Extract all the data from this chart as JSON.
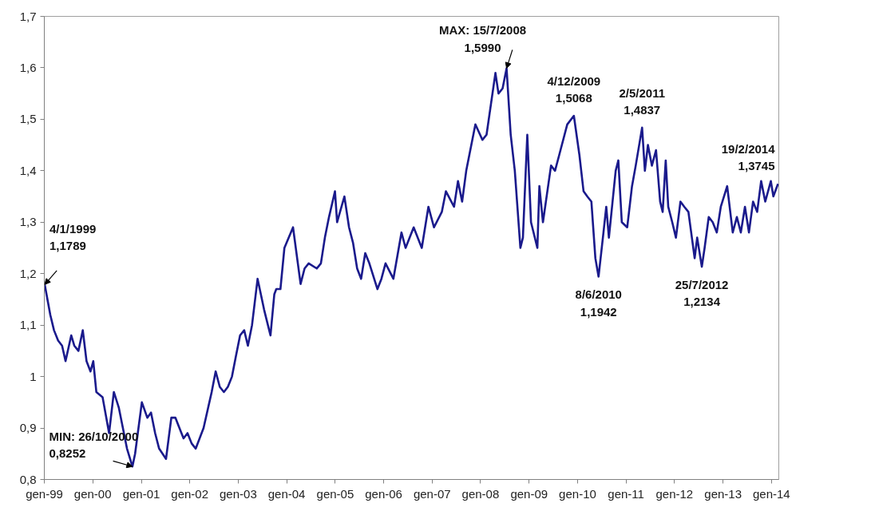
{
  "chart_data": {
    "type": "line",
    "x": [
      "1999-01-04",
      "1999-02-15",
      "1999-03-15",
      "1999-04-15",
      "1999-05-15",
      "1999-06-10",
      "1999-07-23",
      "1999-08-15",
      "1999-09-15",
      "1999-10-18",
      "1999-11-15",
      "1999-12-15",
      "2000-01-05",
      "2000-01-28",
      "2000-03-15",
      "2000-05-03",
      "2000-06-08",
      "2000-07-15",
      "2000-09-15",
      "2000-10-26",
      "2000-11-15",
      "2001-01-05",
      "2001-02-15",
      "2001-03-15",
      "2001-04-15",
      "2001-05-15",
      "2001-07-06",
      "2001-08-15",
      "2001-09-15",
      "2001-10-15",
      "2001-11-15",
      "2001-12-15",
      "2002-01-15",
      "2002-02-15",
      "2002-04-15",
      "2002-06-15",
      "2002-07-15",
      "2002-08-15",
      "2002-09-15",
      "2002-10-15",
      "2002-11-15",
      "2002-12-15",
      "2003-01-15",
      "2003-02-15",
      "2003-03-15",
      "2003-04-15",
      "2003-05-27",
      "2003-07-15",
      "2003-09-01",
      "2003-09-30",
      "2003-10-15",
      "2003-11-15",
      "2003-12-15",
      "2004-02-18",
      "2004-04-15",
      "2004-05-15",
      "2004-06-15",
      "2004-08-15",
      "2004-09-15",
      "2004-10-15",
      "2004-11-15",
      "2004-12-30",
      "2005-01-15",
      "2005-03-11",
      "2005-04-15",
      "2005-05-15",
      "2005-06-15",
      "2005-07-15",
      "2005-08-15",
      "2005-09-15",
      "2005-11-15",
      "2005-12-15",
      "2006-01-15",
      "2006-03-15",
      "2006-05-15",
      "2006-06-15",
      "2006-08-15",
      "2006-10-15",
      "2006-12-04",
      "2007-01-15",
      "2007-03-15",
      "2007-04-15",
      "2007-06-15",
      "2007-07-15",
      "2007-08-15",
      "2007-09-15",
      "2007-11-23",
      "2008-01-15",
      "2008-02-15",
      "2008-04-22",
      "2008-05-15",
      "2008-06-15",
      "2008-07-15",
      "2008-08-15",
      "2008-09-15",
      "2008-10-27",
      "2008-11-15",
      "2008-12-18",
      "2009-01-15",
      "2009-03-04",
      "2009-03-19",
      "2009-04-15",
      "2009-06-15",
      "2009-07-15",
      "2009-08-15",
      "2009-10-15",
      "2009-12-04",
      "2010-01-15",
      "2010-02-15",
      "2010-03-15",
      "2010-04-15",
      "2010-05-15",
      "2010-06-08",
      "2010-07-15",
      "2010-08-05",
      "2010-08-25",
      "2010-10-15",
      "2010-11-04",
      "2010-11-30",
      "2011-01-10",
      "2011-02-15",
      "2011-03-15",
      "2011-05-02",
      "2011-05-23",
      "2011-06-15",
      "2011-07-15",
      "2011-08-15",
      "2011-09-15",
      "2011-10-04",
      "2011-10-27",
      "2011-11-15",
      "2011-12-15",
      "2012-01-12",
      "2012-02-15",
      "2012-03-15",
      "2012-04-15",
      "2012-06-01",
      "2012-06-20",
      "2012-07-25",
      "2012-08-15",
      "2012-09-15",
      "2012-10-15",
      "2012-11-15",
      "2012-12-15",
      "2013-02-01",
      "2013-03-15",
      "2013-04-15",
      "2013-05-15",
      "2013-06-15",
      "2013-07-15",
      "2013-08-15",
      "2013-09-15",
      "2013-10-15",
      "2013-11-15",
      "2013-12-27",
      "2014-01-15",
      "2014-02-19"
    ],
    "series": [
      {
        "color": "#1a1a8c",
        "values": [
          1.1789,
          1.12,
          1.09,
          1.07,
          1.06,
          1.03,
          1.08,
          1.06,
          1.05,
          1.09,
          1.03,
          1.01,
          1.03,
          0.97,
          0.96,
          0.89,
          0.97,
          0.94,
          0.86,
          0.8252,
          0.85,
          0.95,
          0.92,
          0.93,
          0.89,
          0.86,
          0.84,
          0.92,
          0.92,
          0.9,
          0.88,
          0.89,
          0.87,
          0.86,
          0.9,
          0.97,
          1.01,
          0.98,
          0.97,
          0.98,
          1.0,
          1.04,
          1.08,
          1.09,
          1.06,
          1.1,
          1.19,
          1.13,
          1.08,
          1.16,
          1.17,
          1.17,
          1.25,
          1.29,
          1.18,
          1.21,
          1.22,
          1.21,
          1.22,
          1.27,
          1.31,
          1.36,
          1.3,
          1.35,
          1.29,
          1.26,
          1.21,
          1.19,
          1.24,
          1.22,
          1.17,
          1.19,
          1.22,
          1.19,
          1.28,
          1.25,
          1.29,
          1.25,
          1.33,
          1.29,
          1.32,
          1.36,
          1.33,
          1.38,
          1.34,
          1.4,
          1.49,
          1.46,
          1.47,
          1.59,
          1.55,
          1.56,
          1.599,
          1.47,
          1.4,
          1.25,
          1.27,
          1.47,
          1.3,
          1.25,
          1.37,
          1.3,
          1.41,
          1.4,
          1.43,
          1.49,
          1.5068,
          1.43,
          1.36,
          1.35,
          1.34,
          1.23,
          1.1942,
          1.28,
          1.33,
          1.27,
          1.4,
          1.42,
          1.3,
          1.29,
          1.37,
          1.41,
          1.4837,
          1.4,
          1.45,
          1.41,
          1.44,
          1.34,
          1.32,
          1.42,
          1.33,
          1.3,
          1.27,
          1.34,
          1.33,
          1.32,
          1.23,
          1.27,
          1.2134,
          1.25,
          1.31,
          1.3,
          1.28,
          1.33,
          1.37,
          1.28,
          1.31,
          1.28,
          1.33,
          1.28,
          1.34,
          1.32,
          1.38,
          1.34,
          1.38,
          1.35,
          1.3745
        ]
      }
    ],
    "xlim": [
      "1999-01-01",
      "2014-02-25"
    ],
    "xticks": [
      {
        "value": "1999-01-01",
        "label": "gen-99"
      },
      {
        "value": "2000-01-01",
        "label": "gen-00"
      },
      {
        "value": "2001-01-01",
        "label": "gen-01"
      },
      {
        "value": "2002-01-01",
        "label": "gen-02"
      },
      {
        "value": "2003-01-01",
        "label": "gen-03"
      },
      {
        "value": "2004-01-01",
        "label": "gen-04"
      },
      {
        "value": "2005-01-01",
        "label": "gen-05"
      },
      {
        "value": "2006-01-01",
        "label": "gen-06"
      },
      {
        "value": "2007-01-01",
        "label": "gen-07"
      },
      {
        "value": "2008-01-01",
        "label": "gen-08"
      },
      {
        "value": "2009-01-01",
        "label": "gen-09"
      },
      {
        "value": "2010-01-01",
        "label": "gen-10"
      },
      {
        "value": "2011-01-01",
        "label": "gen-11"
      },
      {
        "value": "2012-01-01",
        "label": "gen-12"
      },
      {
        "value": "2013-01-01",
        "label": "gen-13"
      },
      {
        "value": "2014-01-01",
        "label": "gen-14"
      }
    ],
    "ylim": [
      0.8,
      1.7
    ],
    "yticks": [
      {
        "value": 0.8,
        "label": "0,8"
      },
      {
        "value": 0.9,
        "label": "0,9"
      },
      1,
      {
        "value": 1.1,
        "label": "1,1"
      },
      {
        "value": 1.2,
        "label": "1,2"
      },
      {
        "value": 1.3,
        "label": "1,3"
      },
      {
        "value": 1.4,
        "label": "1,4"
      },
      {
        "value": 1.5,
        "label": "1,5"
      },
      {
        "value": 1.6,
        "label": "1,6"
      },
      {
        "value": 1.7,
        "label": "1,7"
      }
    ],
    "annotations": [
      {
        "text": "4/1/1999\n1,1789",
        "x": "1999-01-04",
        "y": 1.1789
      },
      {
        "text": "MIN: 26/10/2000\n0,8252",
        "x": "2000-10-26",
        "y": 0.8252
      },
      {
        "text": "MAX: 15/7/2008\n1,5990",
        "x": "2008-07-15",
        "y": 1.599
      },
      {
        "text": "4/12/2009\n1,5068",
        "x": "2009-12-04",
        "y": 1.5068
      },
      {
        "text": "8/6/2010\n1,1942",
        "x": "2010-06-08",
        "y": 1.1942
      },
      {
        "text": "2/5/2011\n1,4837",
        "x": "2011-05-02",
        "y": 1.4837
      },
      {
        "text": "25/7/2012\n1,2134",
        "x": "2012-07-25",
        "y": 1.2134
      },
      {
        "text": "19/2/2014\n1,3745",
        "x": "2014-02-19",
        "y": 1.3745
      }
    ],
    "grid": false,
    "line_style": "solid",
    "marker": "none"
  }
}
